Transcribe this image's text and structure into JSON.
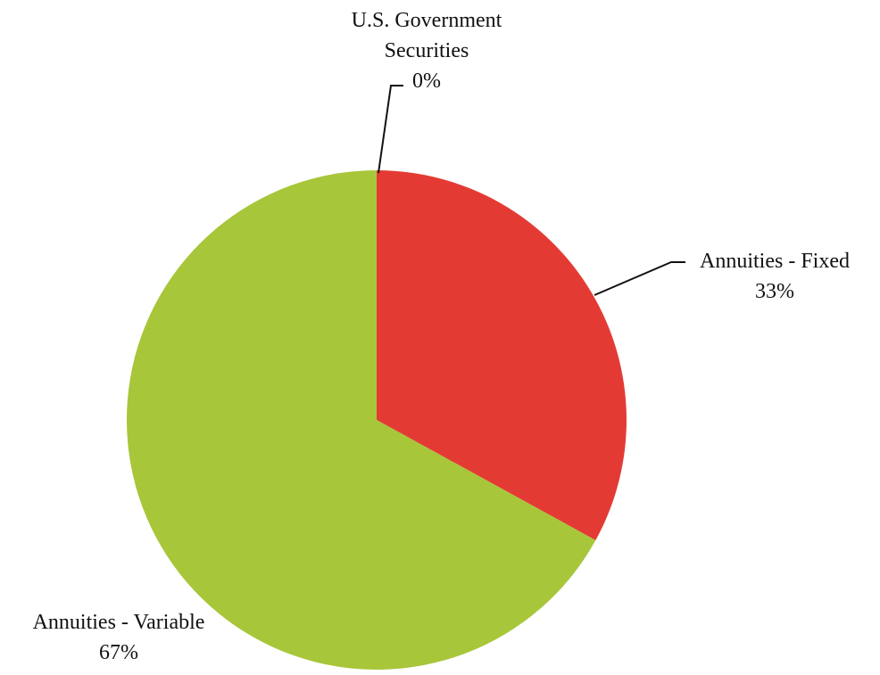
{
  "chart_data": {
    "type": "pie",
    "title": "",
    "start": "top",
    "direction": "clockwise",
    "slices": [
      {
        "label": "U.S. Government Securities",
        "label_lines": [
          "U.S. Government",
          "Securities"
        ],
        "value": 0,
        "value_label": "0%",
        "color": "#d9ddd0"
      },
      {
        "label": "Annuities - Fixed",
        "label_lines": [
          "Annuities - Fixed"
        ],
        "value": 33,
        "value_label": "33%",
        "color": "#e33b34"
      },
      {
        "label": "Annuities - Variable",
        "label_lines": [
          "Annuities - Variable"
        ],
        "value": 67,
        "value_label": "67%",
        "color": "#a8c63a"
      }
    ]
  }
}
